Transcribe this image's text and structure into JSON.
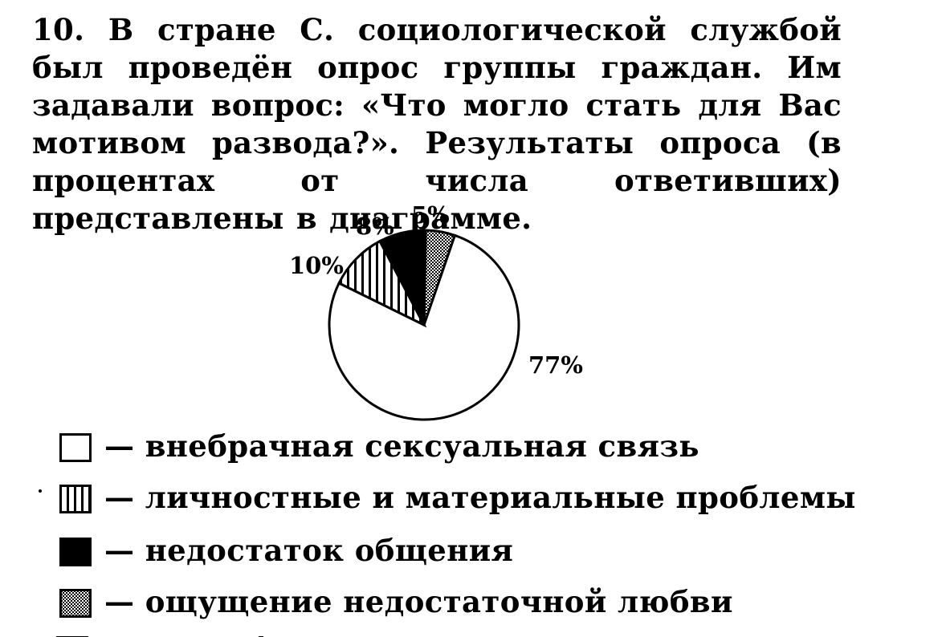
{
  "problem": {
    "number": "10.",
    "text": "В стране С. социологической службой был проведён опрос группы граждан. Им задавали вопрос: «Что могло стать для Вас мотивом развода?». Результаты опроса (в процентах от числа ответивших) представлены в диаграмме."
  },
  "chart_data": {
    "type": "pie",
    "start": "top, clockwise",
    "slices": [
      {
        "category": "внебрачная сексуальная связь",
        "value": 77,
        "label": "77%",
        "pattern": "blank"
      },
      {
        "category": "личностные и материальные проблемы",
        "value": 10,
        "label": "10%",
        "pattern": "vertical-stripes"
      },
      {
        "category": "недостаток общения",
        "value": 8,
        "label": "8%",
        "pattern": "solid-black"
      },
      {
        "category": "ощущение недостаточной любви",
        "value": 5,
        "label": "5%",
        "pattern": "dotted"
      }
    ]
  },
  "legend": {
    "separator": "—",
    "items": [
      {
        "text": "внебрачная сексуальная связь",
        "pattern": "blank"
      },
      {
        "text": "личностные и материальные проблемы",
        "pattern": "vertical-stripes"
      },
      {
        "text": "недостаток общения",
        "pattern": "solid-black"
      },
      {
        "text": "ощущение недостаточной любви",
        "pattern": "dotted"
      }
    ]
  },
  "colors": {
    "ink": "#000000",
    "paper": "#ffffff"
  }
}
